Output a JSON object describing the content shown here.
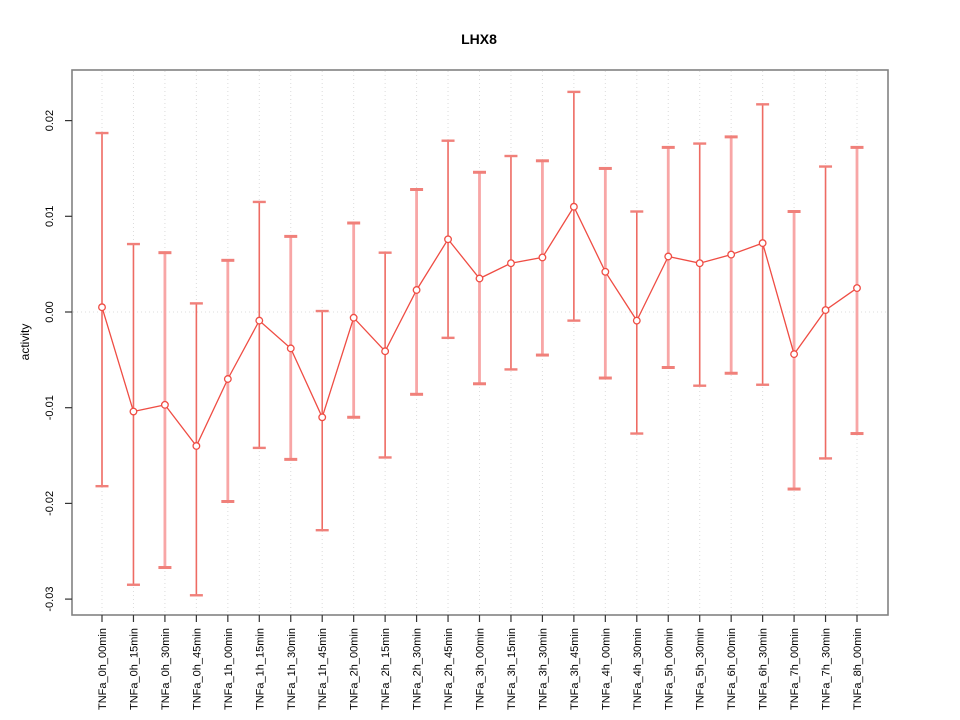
{
  "chart_data": {
    "type": "line",
    "title": "LHX8",
    "xlabel": "",
    "ylabel": "activity",
    "legend": null,
    "grid": {
      "vertical": "dotted line at every category",
      "horizontal": "dotted line at y=0 only"
    },
    "ylim": [
      -0.0317,
      0.0252
    ],
    "y_ticks": [
      0.02,
      0.01,
      0.0,
      -0.01,
      -0.02,
      -0.03
    ],
    "y_tick_labels": [
      "0.02",
      "0.01",
      "0.00",
      "-0.01",
      "-0.02",
      "-0.03"
    ],
    "categories": [
      "TNFa_0h_00min",
      "TNFa_0h_15min",
      "TNFa_0h_30min",
      "TNFa_0h_45min",
      "TNFa_1h_00min",
      "TNFa_1h_15min",
      "TNFa_1h_30min",
      "TNFa_1h_45min",
      "TNFa_2h_00min",
      "TNFa_2h_15min",
      "TNFa_2h_30min",
      "TNFa_2h_45min",
      "TNFa_3h_00min",
      "TNFa_3h_15min",
      "TNFa_3h_30min",
      "TNFa_3h_45min",
      "TNFa_4h_00min",
      "TNFa_4h_30min",
      "TNFa_5h_00min",
      "TNFa_5h_30min",
      "TNFa_6h_00min",
      "TNFa_6h_30min",
      "TNFa_7h_00min",
      "TNFa_7h_30min",
      "TNFa_8h_00min"
    ],
    "values": [
      0.0005,
      -0.0104,
      -0.0097,
      -0.014,
      -0.007,
      -0.0009,
      -0.0038,
      -0.011,
      -0.0006,
      -0.0041,
      0.0023,
      0.0076,
      0.0035,
      0.0051,
      0.0057,
      0.011,
      0.0042,
      -0.0009,
      0.0058,
      0.0051,
      0.006,
      0.0072,
      -0.0044,
      0.0002,
      0.0025
    ],
    "error_high": [
      0.0187,
      0.0071,
      0.0062,
      0.0009,
      0.0054,
      0.0115,
      0.0079,
      0.0001,
      0.0093,
      0.0062,
      0.0128,
      0.0179,
      0.0146,
      0.0163,
      0.0158,
      0.023,
      0.015,
      0.0105,
      0.0172,
      0.0176,
      0.0183,
      0.0217,
      0.0105,
      0.0152,
      0.0172
    ],
    "error_low": [
      -0.0182,
      -0.0285,
      -0.0267,
      -0.0296,
      -0.0198,
      -0.0142,
      -0.0154,
      -0.0228,
      -0.011,
      -0.0152,
      -0.0086,
      -0.0027,
      -0.0075,
      -0.006,
      -0.0045,
      -0.0009,
      -0.0069,
      -0.0127,
      -0.0058,
      -0.0077,
      -0.0064,
      -0.0076,
      -0.0185,
      -0.0153,
      -0.0127
    ],
    "colors": {
      "series": "#ef4d44",
      "error_bar_thick": "#f8a6a6",
      "error_bar_thin": "#ee6b63",
      "error_cap": "#f0807a",
      "grid": "#dcdcdc",
      "box": "#828282",
      "tick": "#333333",
      "background": "#ffffff"
    }
  }
}
